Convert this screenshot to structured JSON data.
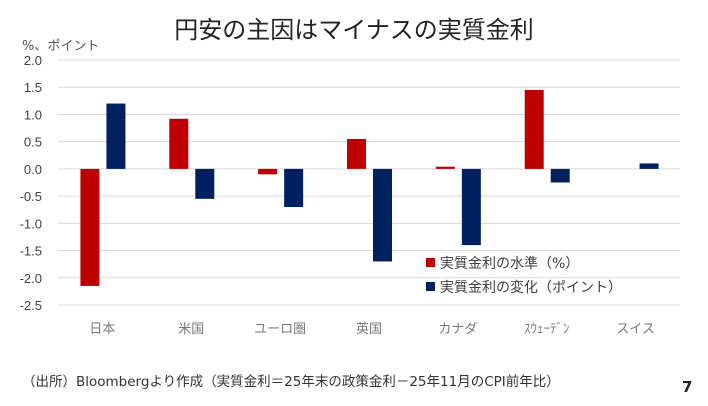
{
  "page_number": "7",
  "source": "（出所）Bloombergより作成（実質金利＝25年末の政策金利－25年11月のCPI前年比）",
  "chart_data": {
    "type": "bar",
    "title": "円安の主因はマイナスの実質金利",
    "ylabel": "%、ポイント",
    "ylim": [
      -2.5,
      2.0
    ],
    "yticks": [
      "2.0",
      "1.5",
      "1.0",
      "0.5",
      "0.0",
      "-0.5",
      "-1.0",
      "-1.5",
      "-2.0",
      "-2.5"
    ],
    "categories": [
      "日本",
      "米国",
      "ユーロ圏",
      "英国",
      "カナダ",
      "ｽｳｪｰﾃﾞﾝ",
      "スイス"
    ],
    "legend_position": "bottom-right",
    "grid": true,
    "series": [
      {
        "name": "実質金利の水準（%）",
        "color": "#C00000",
        "values": [
          -2.15,
          0.92,
          -0.1,
          0.55,
          0.04,
          1.45,
          0
        ]
      },
      {
        "name": "実質金利の変化（ポイント）",
        "color": "#002060",
        "values": [
          1.2,
          -0.55,
          -0.7,
          -1.7,
          -1.4,
          -0.25,
          0.1
        ]
      }
    ]
  }
}
